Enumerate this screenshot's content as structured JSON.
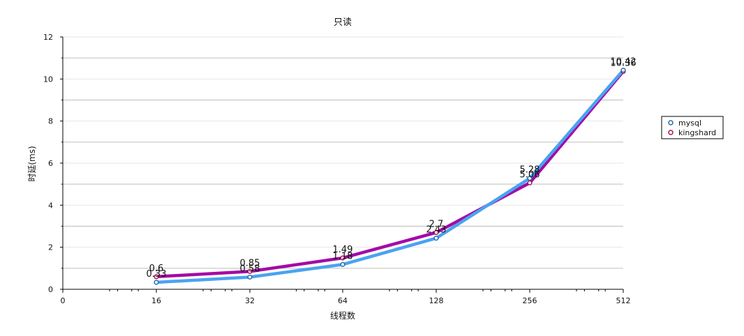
{
  "chart_data": {
    "type": "line",
    "title": "只读",
    "xlabel": "线程数",
    "ylabel": "时延(ms)",
    "x_ticks": [
      "0",
      "16",
      "32",
      "64",
      "128",
      "256",
      "512"
    ],
    "categories": [
      "16",
      "32",
      "64",
      "128",
      "256",
      "512"
    ],
    "ylim": [
      0,
      12
    ],
    "y_ticks": [
      0,
      2,
      4,
      6,
      8,
      10,
      12
    ],
    "legend_position": "right",
    "series": [
      {
        "name": "mysql",
        "color": "#4aa3f0",
        "values": [
          0.33,
          0.58,
          1.18,
          2.43,
          5.28,
          10.42
        ],
        "labels": [
          "0.33",
          "0.58",
          "1.18",
          "2.43",
          "5.28",
          "10.42"
        ]
      },
      {
        "name": "kingshard",
        "color": "#a40aa6",
        "values": [
          0.6,
          0.85,
          1.49,
          2.7,
          5.06,
          10.36
        ],
        "labels": [
          "0.6",
          "0.85",
          "1.49",
          "2.7",
          "5.06",
          "10.36"
        ]
      }
    ]
  }
}
